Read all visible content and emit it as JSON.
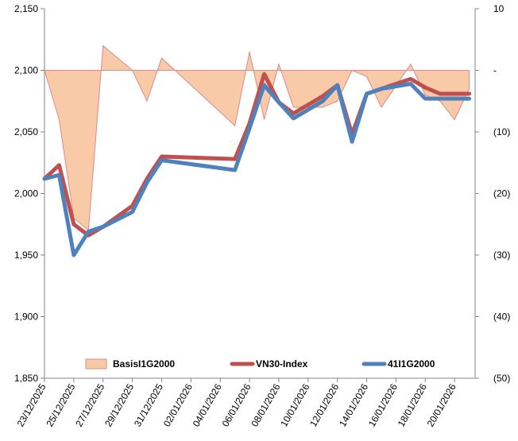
{
  "chart_data": {
    "type": "line",
    "title": "",
    "xlabel": "",
    "ylabel": "",
    "ylabel_right": "",
    "grid": false,
    "legend_position": "bottom",
    "ylim": [
      1850,
      2150
    ],
    "ylim_right": [
      -50,
      10
    ],
    "y_ticks": [
      {
        "value": 1850,
        "label": "1,850"
      },
      {
        "value": 1900,
        "label": "1,900"
      },
      {
        "value": 1950,
        "label": "1,950"
      },
      {
        "value": 2000,
        "label": "2,000"
      },
      {
        "value": 2050,
        "label": "2,050"
      },
      {
        "value": 2100,
        "label": "2,100"
      },
      {
        "value": 2150,
        "label": "2,150"
      }
    ],
    "y_right_ticks": [
      {
        "value": 10,
        "label": "10"
      },
      {
        "value": 0,
        "label": "-"
      },
      {
        "value": -10,
        "label": "(10)"
      },
      {
        "value": -20,
        "label": "(20)"
      },
      {
        "value": -30,
        "label": "(30)"
      },
      {
        "value": -40,
        "label": "(40)"
      },
      {
        "value": -50,
        "label": "(50)"
      }
    ],
    "x_tick_labels": [
      "23/12/2025",
      "25/12/2025",
      "27/12/2025",
      "29/12/2025",
      "31/12/2025",
      "02/01/2026",
      "04/01/2026",
      "06/01/2026",
      "08/01/2026",
      "10/01/2026",
      "12/01/2026",
      "14/01/2026",
      "16/01/2026",
      "18/01/2026",
      "20/01/2026"
    ],
    "x": [
      0,
      1,
      2,
      3,
      4,
      6,
      7,
      8,
      13,
      14,
      15,
      16,
      17,
      19,
      20,
      21,
      22,
      23,
      25,
      26,
      27,
      28,
      29
    ],
    "series": [
      {
        "name": "BasisI1G2000",
        "type": "area",
        "axis": "right",
        "color": "#f8caa8",
        "stroke": "#d98b8b",
        "values": [
          0,
          -8,
          -24,
          -26,
          4,
          0,
          -5,
          2,
          -9,
          3,
          -8,
          1,
          -6,
          -6,
          -5,
          0,
          -1,
          -6,
          1,
          -4,
          -5,
          -8,
          -3
        ]
      },
      {
        "name": "VN30-Index",
        "type": "line",
        "axis": "left",
        "color": "#c0504d",
        "values": [
          2012,
          2023,
          1975,
          1966,
          1973,
          1990,
          2012,
          2030,
          2028,
          2057,
          2097,
          2074,
          2065,
          2079,
          2088,
          2048,
          2081,
          2085,
          2093,
          2086,
          2081,
          2081,
          2081
        ]
      },
      {
        "name": "41I1G2000",
        "type": "line",
        "axis": "left",
        "color": "#4f81bd",
        "values": [
          2012,
          2015,
          1950,
          1969,
          1973,
          1985,
          2009,
          2027,
          2019,
          2053,
          2088,
          2074,
          2061,
          2075,
          2088,
          2042,
          2081,
          2085,
          2089,
          2077,
          2077,
          2077,
          2077
        ]
      }
    ]
  }
}
